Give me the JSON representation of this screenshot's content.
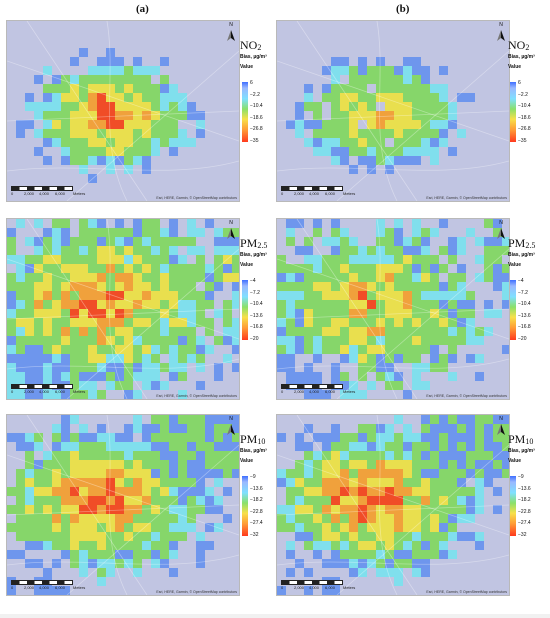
{
  "columns": [
    {
      "label": "(a)"
    },
    {
      "label": "(b)"
    }
  ],
  "rows": [
    {
      "pollutant": "NO",
      "sub": "2",
      "bias_label": "Bias, µg/m³",
      "value_title": "Value",
      "ticks": [
        "6",
        "−2.2",
        "−10.4",
        "−18.6",
        "−26.8",
        "−35"
      ]
    },
    {
      "pollutant": "PM",
      "sub": "2.5",
      "bias_label": "Bias, µg/m³",
      "value_title": "Value",
      "ticks": [
        "−4",
        "−7.2",
        "−10.4",
        "−13.6",
        "−16.8",
        "−20"
      ]
    },
    {
      "pollutant": "PM",
      "sub": "10",
      "bias_label": "Bias, µg/m³",
      "value_title": "Value",
      "ticks": [
        "−9",
        "−13.6",
        "−18.2",
        "−22.8",
        "−27.4",
        "−32"
      ]
    }
  ],
  "map": {
    "north_letter": "N",
    "scale_labels": [
      "0",
      "2,000",
      "4,000",
      "6,000",
      "Meters"
    ],
    "attribution": "Esri, HERE, Garmin, © OpenStreetMap contributors"
  },
  "colors": {
    "hot": "#ff3a1e",
    "warm": "#ff9a36",
    "yellow": "#f7e04a",
    "green": "#86d66a",
    "cyan": "#7fe0ff",
    "blue": "#6b8dff",
    "lavender": "#c9c3f2"
  }
}
